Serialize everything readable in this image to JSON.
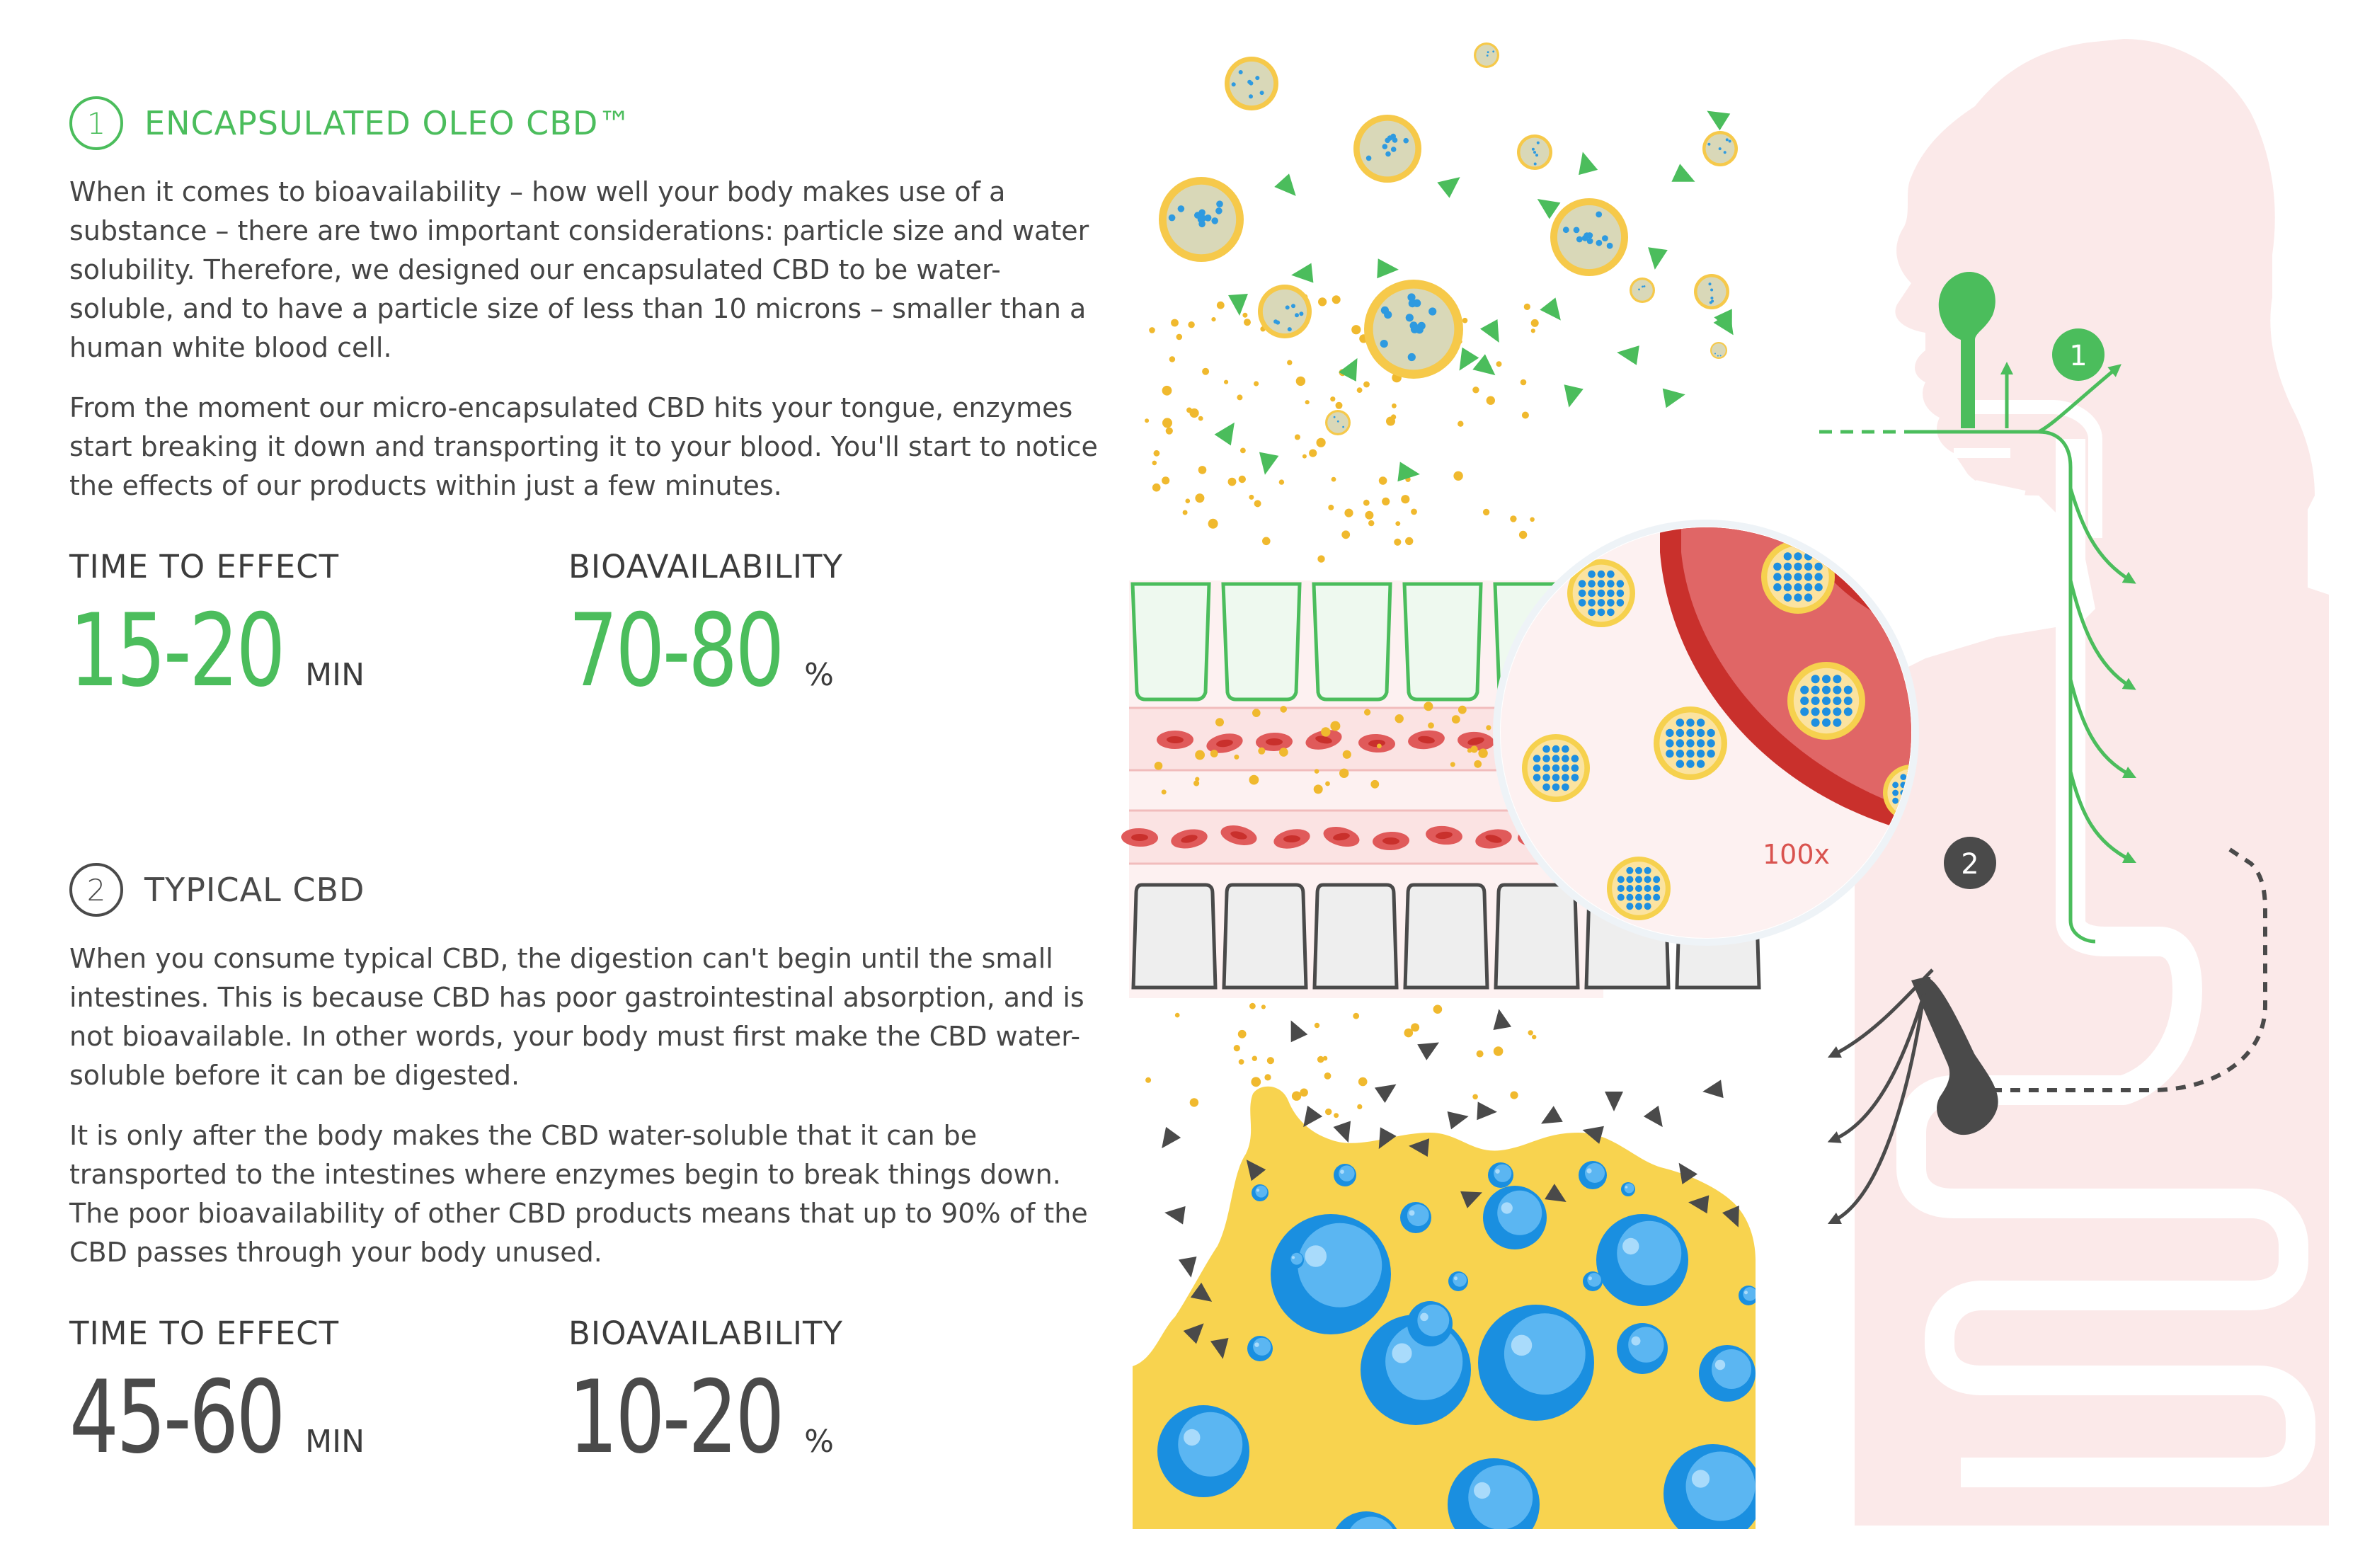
{
  "section1": {
    "number": "1",
    "title": "ENCAPSULATED OLEO CBD™",
    "paragraphs": [
      "When it comes to bioavailability – how well your body makes use of a substance – there are two important considerations: particle size and water solubility. Therefore, we designed our encapsulated CBD to be water-soluble, and to have a particle size of less than 10 microns – smaller than a human white blood cell.",
      "From the moment our micro-encapsulated CBD hits your tongue, enzymes start breaking it down and transporting it to your blood. You'll start to notice the effects of our products within just a few minutes."
    ],
    "time_label": "TIME TO EFFECT",
    "time_value": "15-20",
    "time_unit": "MIN",
    "bio_label": "BIOAVAILABILITY",
    "bio_value": "70-80",
    "bio_unit": "%"
  },
  "section2": {
    "number": "2",
    "title": "TYPICAL CBD",
    "paragraphs": [
      "When you consume typical CBD, the digestion can't begin until the small intestines. This is because CBD has poor gastrointestinal absorption, and is not bioavailable. In other words, your body must first make the CBD water-soluble before it can be digested.",
      "It is only after the body makes the CBD water-soluble that it can be transported to the intestines where enzymes begin to break things down. The poor bioavailability of other CBD products means that up to 90% of the CBD passes through your body unused."
    ],
    "time_label": "TIME TO EFFECT",
    "time_value": "45-60",
    "time_unit": "MIN",
    "bio_label": "BIOAVAILABILITY",
    "bio_value": "10-20",
    "bio_unit": "%"
  },
  "illustration": {
    "magnifier_label": "100x",
    "marker_1": "1",
    "marker_2": "2",
    "colors": {
      "green": "#4bbd5c",
      "yellow": "#f6c94a",
      "blue": "#1e8fe0",
      "red": "#e05a5a",
      "body_pink": "#fbe9e9",
      "dark": "#4a4a4a"
    }
  }
}
